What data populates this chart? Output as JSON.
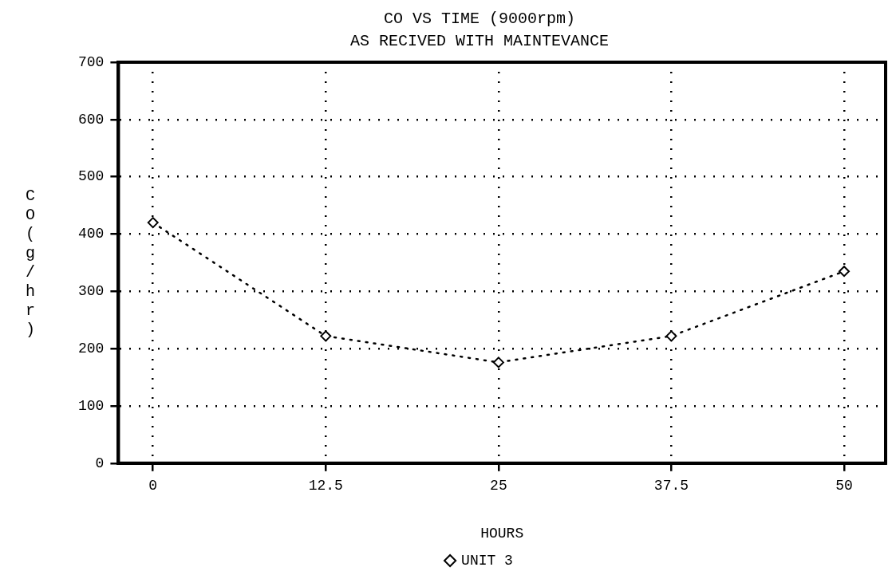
{
  "chart_data": {
    "type": "line",
    "title": "CO VS TIME (9000rpm)",
    "subtitle": "AS RECIVED WITH MAINTEVANCE",
    "xlabel": "HOURS",
    "ylabel": "CO(g/hr)",
    "x": [
      0,
      12.5,
      25,
      37.5,
      50
    ],
    "series": [
      {
        "name": "UNIT 3",
        "color": "#000000",
        "values": [
          420,
          222,
          176,
          222,
          335
        ]
      }
    ],
    "xlim": [
      -2.5,
      53
    ],
    "xticks": [
      0,
      12.5,
      25,
      37.5,
      50
    ],
    "ylim": [
      0,
      700
    ],
    "yticks": [
      0,
      100,
      200,
      300,
      400,
      500,
      600,
      700
    ],
    "grid": true,
    "legend": "bottom",
    "marker": "diamond",
    "line_style": "dotted"
  }
}
